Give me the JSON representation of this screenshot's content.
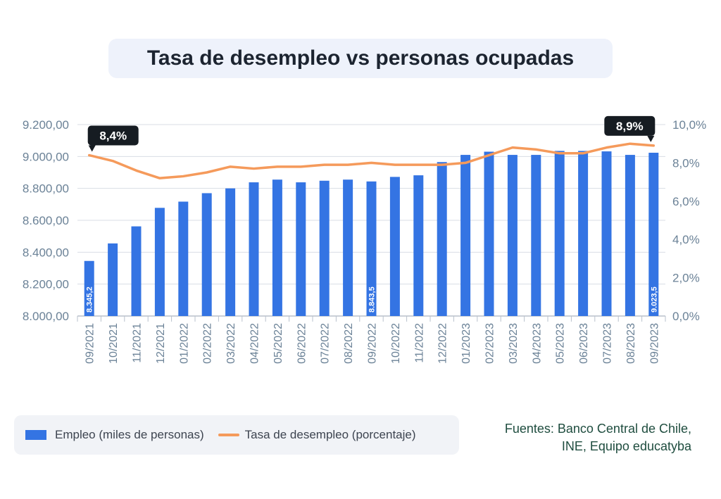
{
  "title": "Tasa de desempleo vs personas ocupadas",
  "legend": {
    "bar_label": "Empleo (miles de personas)",
    "line_label": "Tasa de desempleo (porcentaje)"
  },
  "source": "Fuentes: Banco Central de Chile, INE, Equipo educatyba",
  "colors": {
    "bar": "#3474e3",
    "line": "#f59a5b",
    "callout_bg": "#161c22",
    "axis_text": "#6b8297",
    "grid": "#d8dde5"
  },
  "chart_data": {
    "type": "bar+line",
    "categories": [
      "09/2021",
      "10/2021",
      "11/2021",
      "12/2021",
      "01/2022",
      "02/2022",
      "03/2022",
      "04/2022",
      "05/2022",
      "06/2022",
      "07/2022",
      "08/2022",
      "09/2022",
      "10/2022",
      "11/2022",
      "12/2022",
      "01/2023",
      "02/2023",
      "03/2023",
      "04/2023",
      "05/2023",
      "06/2023",
      "07/2023",
      "08/2023",
      "09/2023"
    ],
    "series": [
      {
        "name": "Empleo (miles de personas)",
        "type": "bar",
        "axis": "left",
        "values": [
          8345.2,
          8455,
          8562,
          8678,
          8717,
          8770,
          8800,
          8838,
          8855,
          8838,
          8848,
          8855,
          8843.5,
          8872,
          8882,
          8965,
          9010,
          9030,
          9010,
          9010,
          9035,
          9035,
          9032,
          9010,
          9023.5
        ]
      },
      {
        "name": "Tasa de desempleo (porcentaje)",
        "type": "line",
        "axis": "right",
        "values": [
          8.4,
          8.1,
          7.6,
          7.2,
          7.3,
          7.5,
          7.8,
          7.7,
          7.8,
          7.8,
          7.9,
          7.9,
          8.0,
          7.9,
          7.9,
          7.9,
          8.0,
          8.4,
          8.8,
          8.7,
          8.5,
          8.5,
          8.8,
          9.0,
          8.9
        ]
      }
    ],
    "bar_labels": [
      {
        "index": 0,
        "text": "8.345,2"
      },
      {
        "index": 12,
        "text": "8.843,5"
      },
      {
        "index": 24,
        "text": "9.023,5"
      }
    ],
    "callouts": [
      {
        "index": 0,
        "text": "8,4%"
      },
      {
        "index": 24,
        "text": "8,9%"
      }
    ],
    "y_left": {
      "min": 8000,
      "max": 9200,
      "ticks": [
        8000,
        8200,
        8400,
        8600,
        8800,
        9000,
        9200
      ],
      "tick_labels": [
        "8.000,00",
        "8.200,00",
        "8.400,00",
        "8.600,00",
        "8.800,00",
        "9.000,00",
        "9.200,00"
      ]
    },
    "y_right": {
      "min": 0,
      "max": 10,
      "ticks": [
        0,
        2,
        4,
        6,
        8,
        10
      ],
      "tick_labels": [
        "0,0%",
        "2,0%",
        "4,0%",
        "6,0%",
        "8,0%",
        "10,0%"
      ]
    },
    "grid": true,
    "legend_position": "bottom-left"
  }
}
